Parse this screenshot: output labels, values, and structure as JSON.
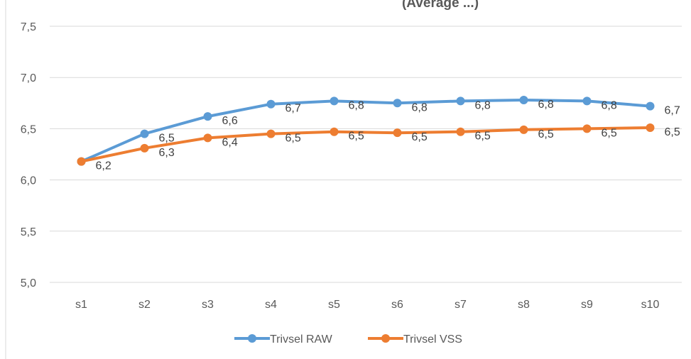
{
  "chart_data": {
    "type": "line",
    "title_visible_fragment": "(Average ...)",
    "categories": [
      "s1",
      "s2",
      "s3",
      "s4",
      "s5",
      "s6",
      "s7",
      "s8",
      "s9",
      "s10"
    ],
    "series": [
      {
        "name": "Trivsel RAW",
        "color": "#5B9BD5",
        "values": [
          6.18,
          6.45,
          6.62,
          6.74,
          6.77,
          6.75,
          6.77,
          6.78,
          6.77,
          6.72
        ],
        "labels": [
          "",
          "6,5",
          "6,6",
          "6,7",
          "6,8",
          "6,8",
          "6,8",
          "6,8",
          "6,8",
          "6,7"
        ]
      },
      {
        "name": "Trivsel VSS",
        "color": "#ED7D31",
        "values": [
          6.18,
          6.31,
          6.41,
          6.45,
          6.47,
          6.46,
          6.47,
          6.49,
          6.5,
          6.51
        ],
        "labels": [
          "6,2",
          "6,3",
          "6,4",
          "6,5",
          "6,5",
          "6,5",
          "6,5",
          "6,5",
          "6,5",
          "6,5"
        ]
      }
    ],
    "ylim": [
      5.0,
      7.5
    ],
    "yticks": [
      "5,0",
      "5,5",
      "6,0",
      "6,5",
      "7,0",
      "7,5"
    ],
    "ytick_values": [
      5.0,
      5.5,
      6.0,
      6.5,
      7.0,
      7.5
    ],
    "grid": true,
    "legend_position": "bottom"
  }
}
